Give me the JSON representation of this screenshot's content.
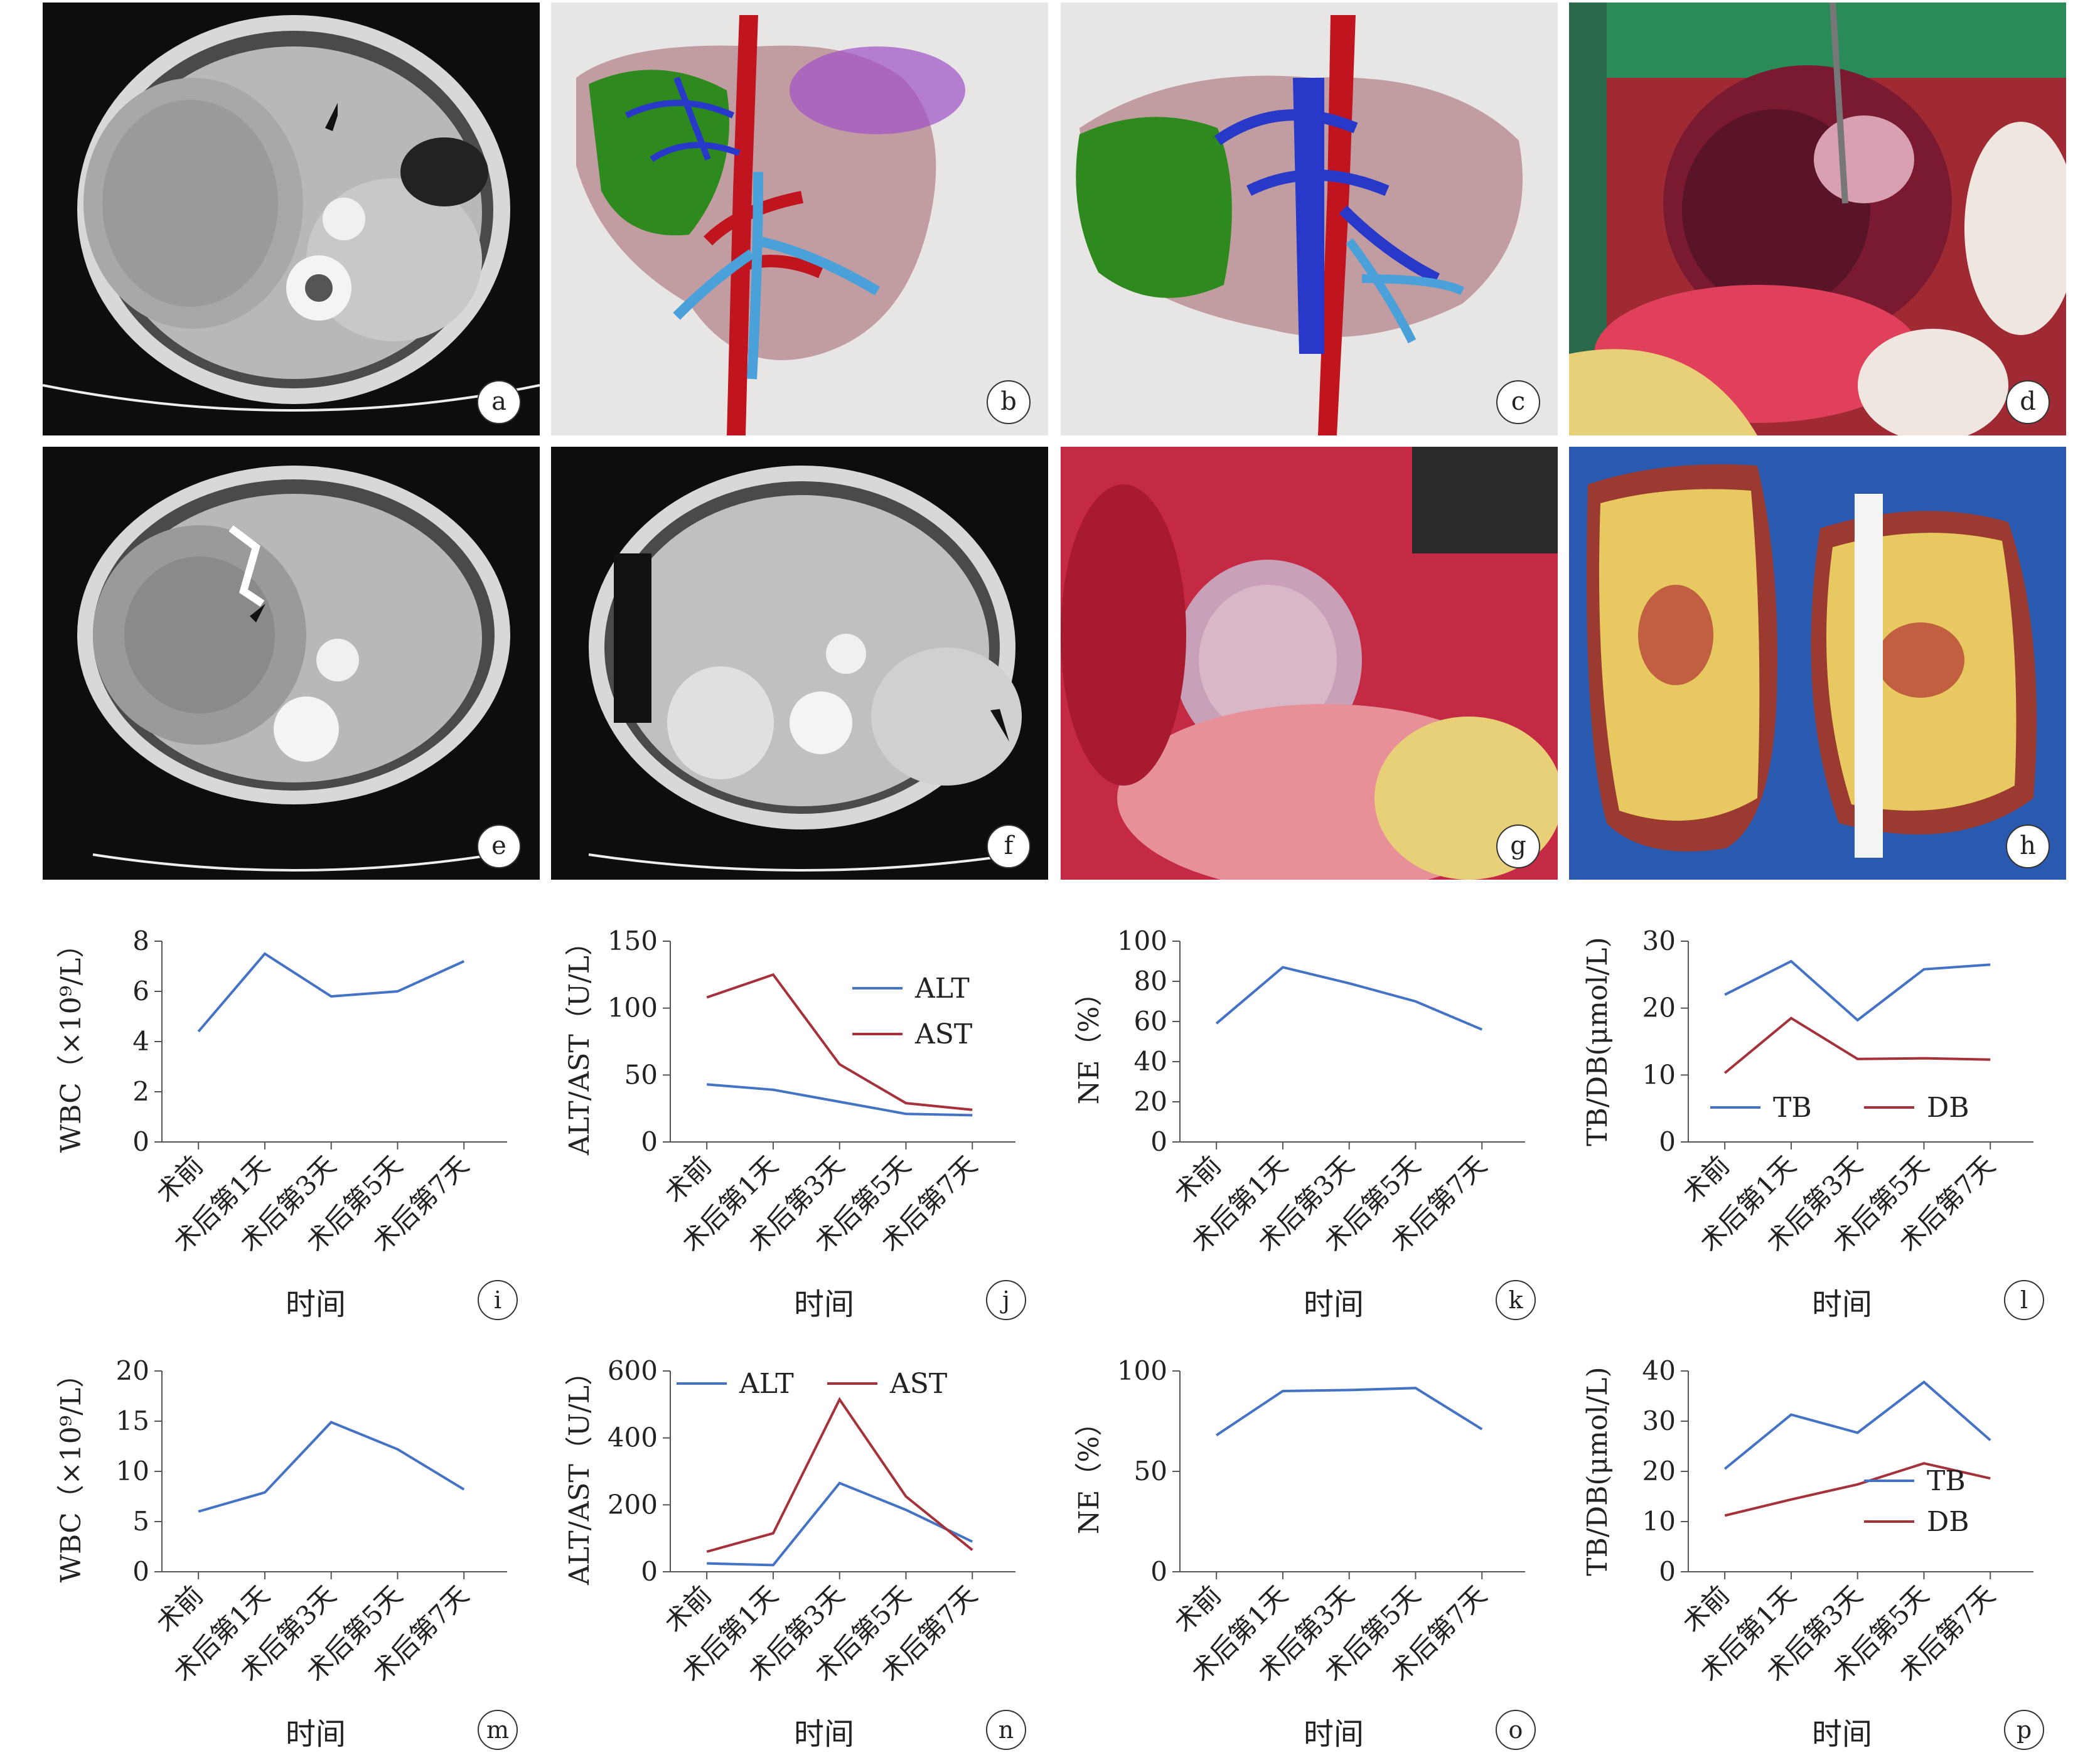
{
  "panels": {
    "a": "a",
    "b": "b",
    "c": "c",
    "d": "d",
    "e": "e",
    "f": "f",
    "g": "g",
    "h": "h"
  },
  "colors": {
    "ct_dark": "#111111",
    "ct_soft": "#b8b8b8",
    "ct_bright": "#e6e6e6",
    "liver": "#a0606c",
    "tumor": "#2e8a1e",
    "artery": "#c0141e",
    "portal": "#2838c8",
    "hepatic": "#4aa0d8",
    "spleen": "#a050c8",
    "tissue_red": "#c8283c",
    "fat": "#e8d078",
    "drape": "#2a8a5a",
    "specimen_bg": "#2a5ab0",
    "line_blue": "#4472c4",
    "line_red": "#a5323a"
  },
  "chart_data": [
    {
      "id": "i",
      "label": "i",
      "type": "line",
      "categories": [
        "术前",
        "术后第1天",
        "术后第3天",
        "术后第5天",
        "术后第7天"
      ],
      "ylabel": "WBC（×10⁹/L）",
      "xlabel": "时间",
      "ylim": [
        0,
        8
      ],
      "yticks": [
        "0",
        "2",
        "4",
        "6",
        "8"
      ],
      "series": [
        {
          "values": [
            4.4,
            7.5,
            5.8,
            6.0,
            7.2
          ]
        }
      ],
      "legend": "none"
    },
    {
      "id": "j",
      "label": "j",
      "type": "line",
      "categories": [
        "术前",
        "术后第1天",
        "术后第3天",
        "术后第5天",
        "术后第7天"
      ],
      "ylabel": "ALT/AST（U/L）",
      "xlabel": "时间",
      "ylim": [
        0,
        150
      ],
      "yticks": [
        "0",
        "50",
        "100",
        "150"
      ],
      "series": [
        {
          "name": "ALT",
          "values": [
            43,
            39,
            30,
            21,
            20
          ]
        },
        {
          "name": "AST",
          "values": [
            108,
            125,
            58,
            29,
            24
          ]
        }
      ],
      "legend": "top-right-stacked"
    },
    {
      "id": "k",
      "label": "k",
      "type": "line",
      "categories": [
        "术前",
        "术后第1天",
        "术后第3天",
        "术后第5天",
        "术后第7天"
      ],
      "ylabel": "NE（%）",
      "xlabel": "时间",
      "ylim": [
        0,
        100
      ],
      "yticks": [
        "0",
        "20",
        "40",
        "60",
        "80",
        "100"
      ],
      "series": [
        {
          "values": [
            59,
            87,
            79,
            70,
            56
          ]
        }
      ],
      "legend": "none"
    },
    {
      "id": "l",
      "label": "l",
      "type": "line",
      "categories": [
        "术前",
        "术后第1天",
        "术后第3天",
        "术后第5天",
        "术后第7天"
      ],
      "ylabel": "TB/DB(μmol/L)",
      "xlabel": "时间",
      "ylim": [
        0,
        30
      ],
      "yticks": [
        "0",
        "10",
        "20",
        "30"
      ],
      "series": [
        {
          "name": "TB",
          "values": [
            22,
            27,
            18.2,
            25.8,
            26.5
          ]
        },
        {
          "name": "DB",
          "values": [
            10.3,
            18.5,
            12.4,
            12.5,
            12.3
          ]
        }
      ],
      "legend": "bottom-row"
    },
    {
      "id": "m",
      "label": "m",
      "type": "line",
      "categories": [
        "术前",
        "术后第1天",
        "术后第3天",
        "术后第5天",
        "术后第7天"
      ],
      "ylabel": "WBC（×10⁹/L）",
      "xlabel": "时间",
      "ylim": [
        0,
        20
      ],
      "yticks": [
        "0",
        "5",
        "10",
        "15",
        "20"
      ],
      "series": [
        {
          "values": [
            6.0,
            7.9,
            14.9,
            12.2,
            8.2
          ]
        }
      ],
      "legend": "none"
    },
    {
      "id": "n",
      "label": "n",
      "type": "line",
      "categories": [
        "术前",
        "术后第1天",
        "术后第3天",
        "术后第5天",
        "术后第7天"
      ],
      "ylabel": "ALT/AST（U/L）",
      "xlabel": "时间",
      "ylim": [
        0,
        600
      ],
      "yticks": [
        "0",
        "200",
        "400",
        "600"
      ],
      "series": [
        {
          "name": "ALT",
          "values": [
            25,
            20,
            265,
            185,
            90
          ]
        },
        {
          "name": "AST",
          "values": [
            60,
            115,
            515,
            225,
            65
          ]
        }
      ],
      "legend": "top-row"
    },
    {
      "id": "o",
      "label": "o",
      "type": "line",
      "categories": [
        "术前",
        "术后第1天",
        "术后第3天",
        "术后第5天",
        "术后第7天"
      ],
      "ylabel": "NE（%）",
      "xlabel": "时间",
      "ylim": [
        0,
        100
      ],
      "yticks": [
        "0",
        "50",
        "100"
      ],
      "series": [
        {
          "values": [
            68,
            90,
            90.5,
            91.5,
            71
          ]
        }
      ],
      "legend": "none"
    },
    {
      "id": "p",
      "label": "p",
      "type": "line",
      "categories": [
        "术前",
        "术后第1天",
        "术后第3天",
        "术后第5天",
        "术后第7天"
      ],
      "ylabel": "TB/DB(μmol/L)",
      "xlabel": "时间",
      "ylim": [
        0,
        40
      ],
      "yticks": [
        "0",
        "10",
        "20",
        "30",
        "40"
      ],
      "series": [
        {
          "name": "TB",
          "values": [
            20.5,
            31.3,
            27.7,
            37.8,
            26.2
          ]
        },
        {
          "name": "DB",
          "values": [
            11.2,
            14.4,
            17.4,
            21.6,
            18.6
          ]
        }
      ],
      "legend": "right-stacked"
    }
  ]
}
